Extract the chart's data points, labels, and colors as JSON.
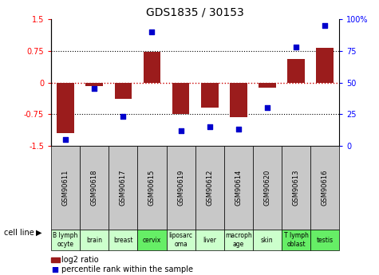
{
  "title": "GDS1835 / 30153",
  "samples": [
    "GSM90611",
    "GSM90618",
    "GSM90617",
    "GSM90615",
    "GSM90619",
    "GSM90612",
    "GSM90614",
    "GSM90620",
    "GSM90613",
    "GSM90616"
  ],
  "cell_lines": [
    "B lymph\nocyte",
    "brain",
    "breast",
    "cervix",
    "liposarc\noma",
    "liver",
    "macroph\nage",
    "skin",
    "T lymph\noblast",
    "testis"
  ],
  "log2_ratio": [
    -1.2,
    -0.08,
    -0.38,
    0.72,
    -0.75,
    -0.6,
    -0.82,
    -0.12,
    0.55,
    0.82
  ],
  "percentile_rank": [
    5,
    45,
    23,
    90,
    12,
    15,
    13,
    30,
    78,
    95
  ],
  "bar_color": "#9b1c1c",
  "dot_color": "#0000cc",
  "zero_line_color": "#cc0000",
  "dot_line_color": "#000000",
  "bg_color_gray": "#c8c8c8",
  "bg_color_green_light": "#ccffcc",
  "bg_color_green_dark": "#66ee66",
  "ylim_left": [
    -1.5,
    1.5
  ],
  "ylim_right": [
    0,
    100
  ],
  "yticks_left": [
    -1.5,
    -0.75,
    0,
    0.75,
    1.5
  ],
  "ytick_labels_left": [
    "-1.5",
    "-0.75",
    "0",
    "0.75",
    "1.5"
  ],
  "yticks_right": [
    0,
    25,
    50,
    75,
    100
  ],
  "ytick_labels_right": [
    "0",
    "25",
    "50",
    "75",
    "100%"
  ],
  "legend_labels": [
    "log2 ratio",
    "percentile rank within the sample"
  ],
  "cell_line_label": "cell line",
  "highlight_indices": [
    3,
    8,
    9
  ]
}
